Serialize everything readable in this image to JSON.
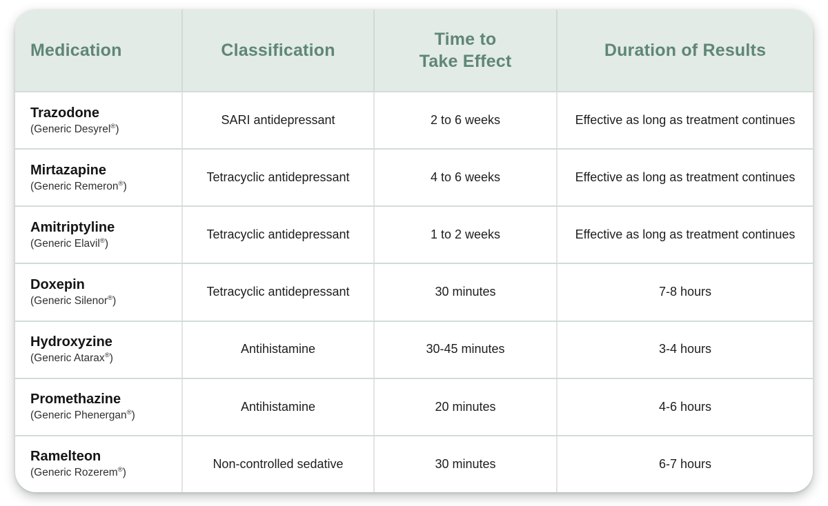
{
  "card": {
    "header": {
      "columns": [
        {
          "label": "Medication"
        },
        {
          "label": "Classification"
        },
        {
          "label": "Time to\nTake Effect"
        },
        {
          "label": "Duration of Results"
        }
      ]
    },
    "rows": [
      {
        "name": "Trazodone",
        "generic": "(Generic Desyrel®)",
        "classification": "SARI antidepressant",
        "time_to_take_effect": "2 to 6 weeks",
        "duration_of_results": "Effective as long as treatment continues"
      },
      {
        "name": "Mirtazapine",
        "generic": "(Generic Remeron®)",
        "classification": "Tetracyclic antidepressant",
        "time_to_take_effect": "4 to 6 weeks",
        "duration_of_results": "Effective as long as treatment continues"
      },
      {
        "name": "Amitriptyline",
        "generic": "(Generic Elavil®)",
        "classification": "Tetracyclic antidepressant",
        "time_to_take_effect": "1 to 2 weeks",
        "duration_of_results": "Effective as long as treatment continues"
      },
      {
        "name": "Doxepin",
        "generic": "(Generic Silenor®)",
        "classification": "Tetracyclic antidepressant",
        "time_to_take_effect": "30 minutes",
        "duration_of_results": "7-8 hours"
      },
      {
        "name": "Hydroxyzine",
        "generic": "(Generic Atarax®)",
        "classification": "Antihistamine",
        "time_to_take_effect": "30-45 minutes",
        "duration_of_results": "3-4 hours"
      },
      {
        "name": "Promethazine",
        "generic": "(Generic Phenergan®)",
        "classification": "Antihistamine",
        "time_to_take_effect": "20 minutes",
        "duration_of_results": "4-6 hours"
      },
      {
        "name": "Ramelteon",
        "generic": "(Generic Rozerem®)",
        "classification": "Non-controlled sedative",
        "time_to_take_effect": "30 minutes",
        "duration_of_results": "6-7 hours"
      }
    ]
  },
  "colors": {
    "header_background": "#e2ebe5",
    "header_text": "#5f8677",
    "row_divider": "#d2dcd6",
    "column_divider": "#e3e3e3",
    "body_text": "#1d1d1d"
  }
}
